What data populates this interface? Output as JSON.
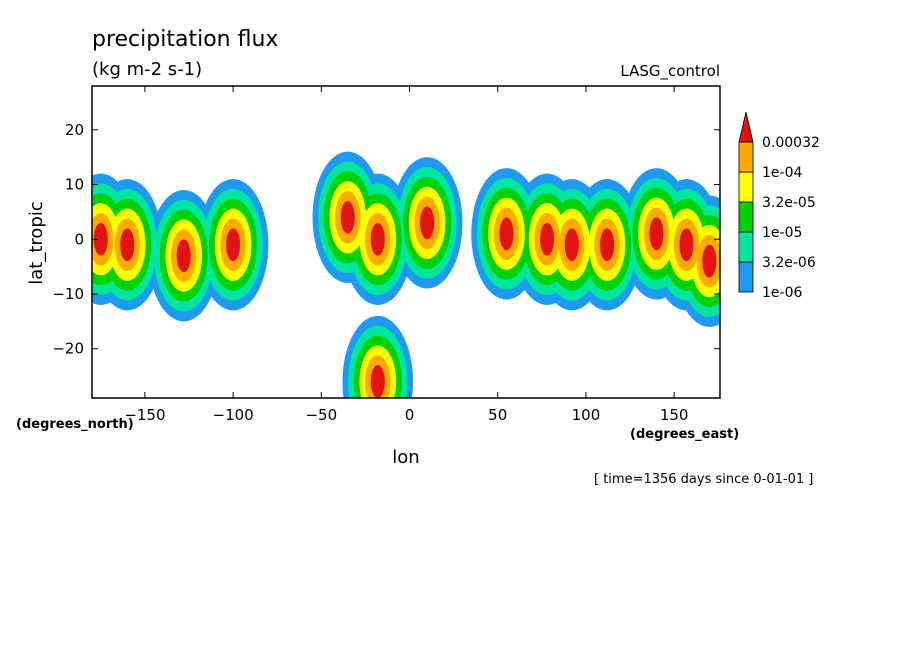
{
  "chart_data": {
    "type": "heatmap",
    "title": "precipitation flux",
    "subtitle": "(kg m-2 s-1)",
    "dataset_label": "LASG_control",
    "xlabel": "lon",
    "ylabel": "lat_tropic",
    "x_units": "(degrees_east)",
    "y_units": "(degrees_north)",
    "time_label": "[ time=1356 days since 0-01-01 ]",
    "xlim": [
      -180,
      176
    ],
    "ylim": [
      -29,
      28
    ],
    "x_ticks": [
      -150,
      -100,
      -50,
      0,
      50,
      100,
      150
    ],
    "x_tick_labels": [
      "−150",
      "−100",
      "−50",
      "0",
      "50",
      "100",
      "150"
    ],
    "y_ticks": [
      -20,
      -10,
      0,
      10,
      20
    ],
    "y_tick_labels": [
      "−20",
      "−10",
      "0",
      "10",
      "20"
    ],
    "grid": false,
    "colorbar": {
      "placement": "right",
      "levels": [
        "1e-06",
        "3.2e-06",
        "1e-05",
        "3.2e-05",
        "1e-04",
        "0.00032"
      ],
      "colors": [
        "#1e9bf0",
        "#00e6a0",
        "#00d200",
        "#ffff00",
        "#ffaa00",
        "#e11414"
      ]
    },
    "features": [
      {
        "lon": -175,
        "lat": 0,
        "level": 5
      },
      {
        "lon": -160,
        "lat": -1,
        "level": 5
      },
      {
        "lon": -128,
        "lat": -3,
        "level": 5
      },
      {
        "lon": -100,
        "lat": -1,
        "level": 5
      },
      {
        "lon": -35,
        "lat": 4,
        "level": 5
      },
      {
        "lon": -18,
        "lat": 0,
        "level": 5
      },
      {
        "lon": 10,
        "lat": 3,
        "level": 5
      },
      {
        "lon": 55,
        "lat": 1,
        "level": 5
      },
      {
        "lon": 78,
        "lat": 0,
        "level": 5
      },
      {
        "lon": 92,
        "lat": -1,
        "level": 5
      },
      {
        "lon": 112,
        "lat": -1,
        "level": 5
      },
      {
        "lon": 140,
        "lat": 1,
        "level": 5
      },
      {
        "lon": 157,
        "lat": -1,
        "level": 5
      },
      {
        "lon": 170,
        "lat": -4,
        "level": 5
      },
      {
        "lon": -18,
        "lat": -26,
        "level": 5
      }
    ]
  }
}
